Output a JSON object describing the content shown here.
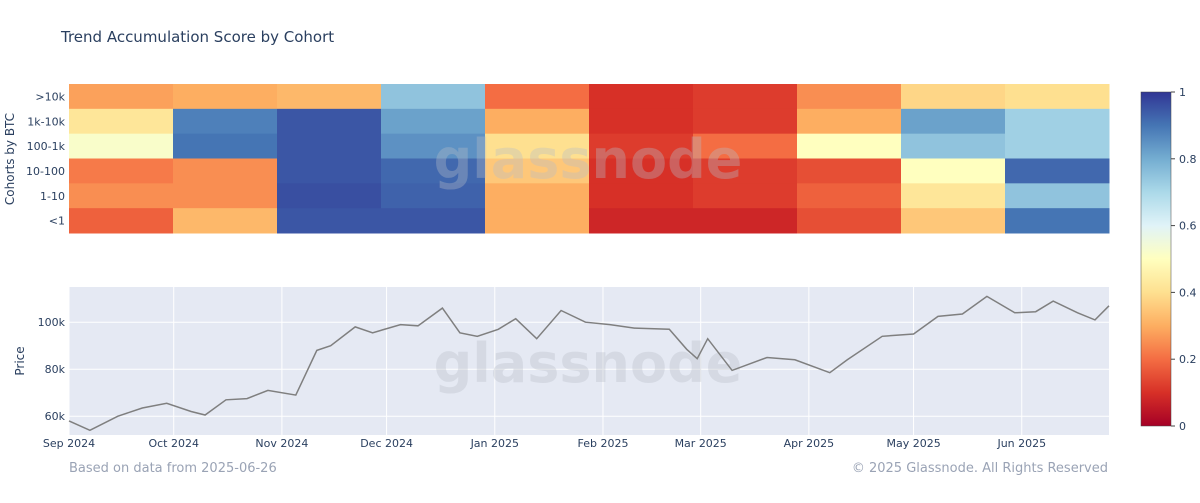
{
  "title": "Trend Accumulation Score by Cohort",
  "footer": {
    "left": "Based on data from 2025-06-26",
    "right": "© 2025 Glassnode. All Rights Reserved"
  },
  "watermark": "glassnode",
  "colors": {
    "scale": [
      "#a50026",
      "#d73027",
      "#f46d43",
      "#fdae61",
      "#fee090",
      "#ffffbf",
      "#e0f3f8",
      "#abd9e9",
      "#74add1",
      "#4575b4",
      "#313695"
    ],
    "price_line": "#7f7f7f",
    "plot_bg": "#e5e9f3",
    "grid": "#ffffff"
  },
  "chart_data": [
    {
      "type": "heatmap",
      "ylabel": "Cohorts by BTC",
      "categories": [
        ">10k",
        "1k-10k",
        "100-1k",
        "10-100",
        "1-10",
        "<1"
      ],
      "colorbar": {
        "range": [
          0,
          1
        ],
        "ticks": [
          "0",
          "0.2",
          "0.4",
          "0.6",
          "0.8",
          "1"
        ]
      },
      "segments": [
        {
          "period": "Sep 2024",
          "values": [
            0.28,
            0.42,
            0.52,
            0.22,
            0.25,
            0.18
          ]
        },
        {
          "period": "Oct 2024",
          "values": [
            0.3,
            0.88,
            0.9,
            0.25,
            0.25,
            0.32
          ]
        },
        {
          "period": "Nov 2024",
          "values": [
            0.32,
            0.95,
            0.95,
            0.95,
            0.96,
            0.95
          ]
        },
        {
          "period": "Dec 2024",
          "values": [
            0.75,
            0.82,
            0.85,
            0.92,
            0.93,
            0.95
          ]
        },
        {
          "period": "Jan 2025",
          "values": [
            0.2,
            0.3,
            0.4,
            0.35,
            0.3,
            0.3
          ]
        },
        {
          "period": "Feb 2025",
          "values": [
            0.1,
            0.1,
            0.12,
            0.1,
            0.1,
            0.08
          ]
        },
        {
          "period": "Mar 2025",
          "values": [
            0.12,
            0.12,
            0.2,
            0.12,
            0.12,
            0.08
          ]
        },
        {
          "period": "Apr 2025",
          "values": [
            0.25,
            0.3,
            0.5,
            0.15,
            0.18,
            0.15
          ]
        },
        {
          "period": "May 2025",
          "values": [
            0.38,
            0.82,
            0.75,
            0.5,
            0.42,
            0.35
          ]
        },
        {
          "period": "Jun 2025",
          "values": [
            0.4,
            0.72,
            0.72,
            0.92,
            0.75,
            0.9
          ]
        }
      ]
    },
    {
      "type": "line",
      "ylabel": "Price",
      "yticks": [
        "60k",
        "80k",
        "100k"
      ],
      "ylim": [
        52000,
        115000
      ],
      "xticks": [
        "Sep 2024",
        "Oct 2024",
        "Nov 2024",
        "Dec 2024",
        "Jan 2025",
        "Feb 2025",
        "Mar 2025",
        "Apr 2025",
        "May 2025",
        "Jun 2025"
      ],
      "series": [
        {
          "x": [
            "2024-09-01",
            "2024-09-07",
            "2024-09-15",
            "2024-09-22",
            "2024-09-29",
            "2024-10-06",
            "2024-10-10",
            "2024-10-16",
            "2024-10-22",
            "2024-10-28",
            "2024-11-05",
            "2024-11-11",
            "2024-11-15",
            "2024-11-22",
            "2024-11-27",
            "2024-12-05",
            "2024-12-10",
            "2024-12-17",
            "2024-12-22",
            "2024-12-27",
            "2025-01-02",
            "2025-01-07",
            "2025-01-13",
            "2025-01-20",
            "2025-01-27",
            "2025-02-03",
            "2025-02-10",
            "2025-02-20",
            "2025-02-25",
            "2025-02-28",
            "2025-03-03",
            "2025-03-10",
            "2025-03-20",
            "2025-03-28",
            "2025-04-07",
            "2025-04-12",
            "2025-04-22",
            "2025-05-01",
            "2025-05-08",
            "2025-05-15",
            "2025-05-22",
            "2025-05-30",
            "2025-06-05",
            "2025-06-10",
            "2025-06-17",
            "2025-06-22",
            "2025-06-26"
          ],
          "y": [
            58000,
            54000,
            60000,
            63500,
            65500,
            62000,
            60500,
            67000,
            67500,
            71000,
            69000,
            88000,
            90000,
            98000,
            95500,
            99000,
            98500,
            106000,
            95500,
            94000,
            97000,
            101500,
            93000,
            105000,
            100000,
            99000,
            97500,
            97000,
            88500,
            84500,
            93000,
            79500,
            85000,
            84000,
            78500,
            84000,
            94000,
            95000,
            102500,
            103500,
            111000,
            104000,
            104500,
            109000,
            104000,
            101000,
            107000
          ]
        }
      ]
    }
  ]
}
